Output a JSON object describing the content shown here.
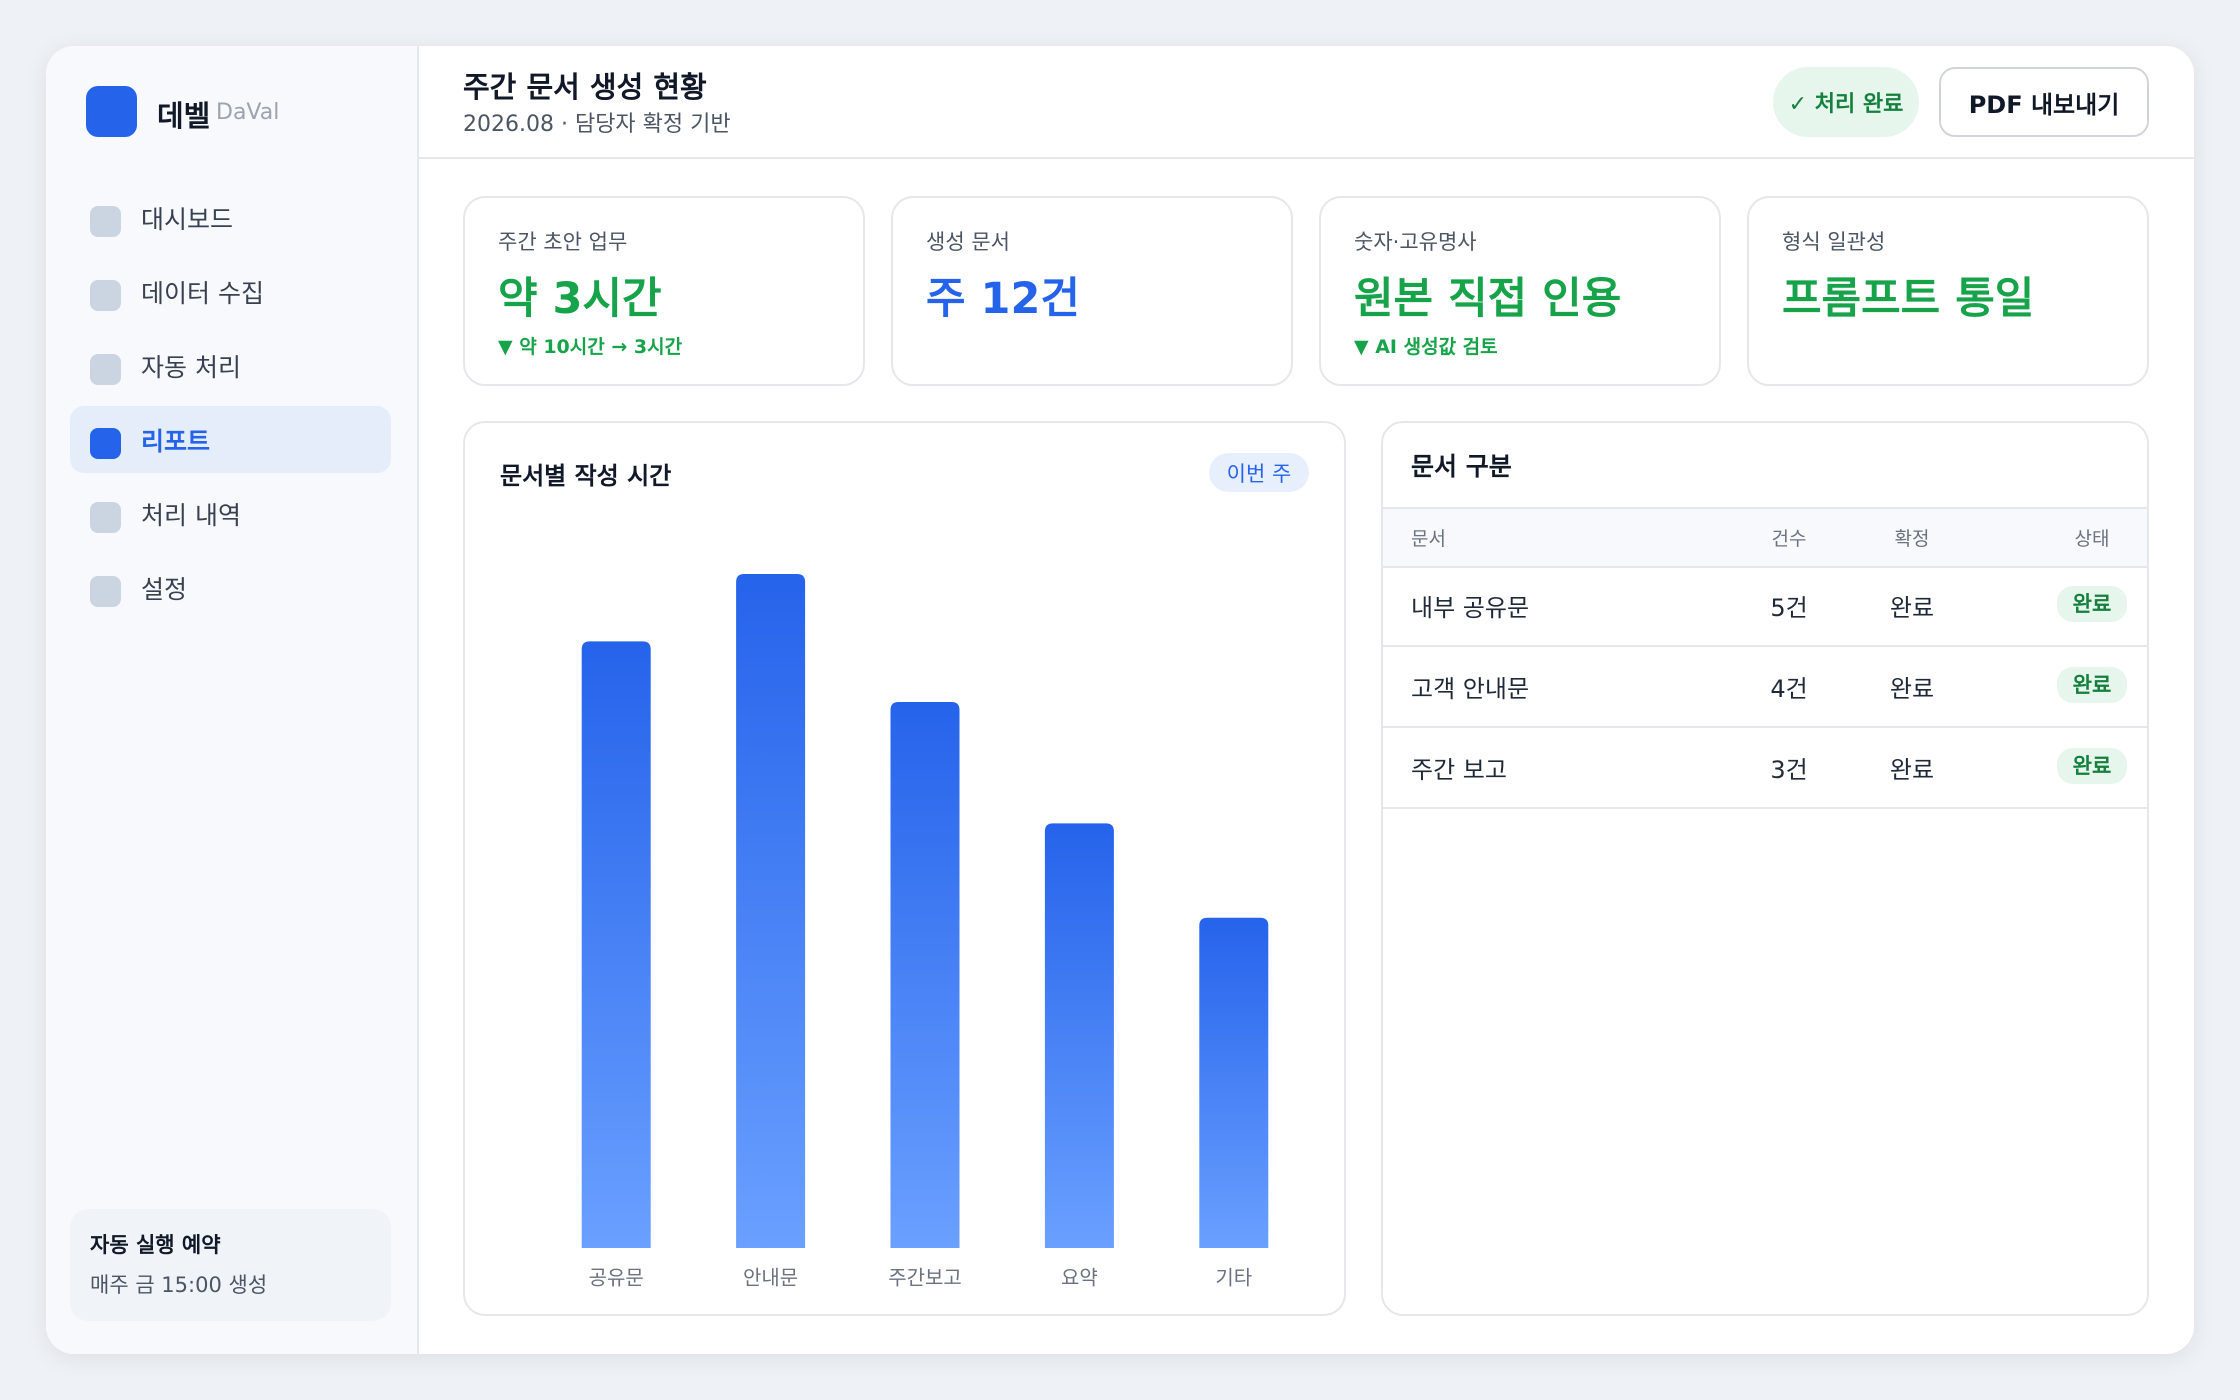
{
  "sidebar": {
    "brand": "데벨",
    "brand_sub": "DaVal",
    "nav": [
      "대시보드",
      "데이터 수집",
      "자동 처리",
      "리포트",
      "처리 내역",
      "설정"
    ],
    "active": 3,
    "schedule": {
      "title": "자동 실행 예약",
      "text": "매주 금 15:00 생성"
    }
  },
  "header": {
    "title": "주간 문서 생성 현황",
    "subtitle": "2026.08 · 담당자 확정 기반",
    "status": "✓ 처리 완료",
    "button": "PDF 내보내기"
  },
  "kpis": [
    {
      "label": "주간 초안 업무",
      "value": "약 3시간",
      "note": "▼ 약 10시간 → 3시간",
      "color": "#16a34a"
    },
    {
      "label": "생성 문서",
      "value": "주 12건",
      "color": "#2563eb"
    },
    {
      "label": "숫자·고유명사",
      "value": "원본 직접 인용",
      "note": "▼ AI 생성값 검토",
      "color": "#16a34a"
    },
    {
      "label": "형식 일관성",
      "value": "프롬프트 통일",
      "color": "#16a34a"
    }
  ],
  "chart_data": {
    "type": "bar",
    "title": "문서별 작성 시간",
    "badge": "이번 주",
    "categories": [
      "공유문",
      "안내문",
      "주간보고",
      "요약",
      "기타"
    ],
    "values": [
      90,
      100,
      81,
      63,
      49
    ],
    "ylim": [
      0,
      100
    ],
    "color": "#2563eb"
  },
  "table": {
    "title": "문서 구분",
    "columns": [
      "문서",
      "건수",
      "확정",
      "상태"
    ],
    "rows": [
      [
        "내부 공유문",
        "5건",
        "완료",
        "완료"
      ],
      [
        "고객 안내문",
        "4건",
        "완료",
        "완료"
      ],
      [
        "주간 보고",
        "3건",
        "완료",
        "완료"
      ]
    ]
  }
}
